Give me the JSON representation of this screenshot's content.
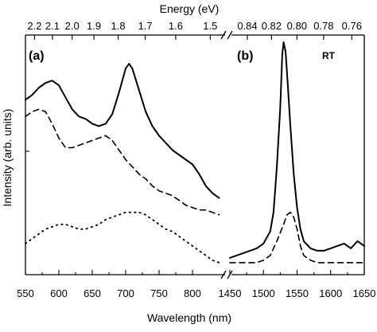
{
  "chart_data": {
    "type": "line",
    "xlabel": "Wavelength (nm)",
    "ylabel": "Intensity (arb. units)",
    "top_axis_label": "Energy (eV)",
    "panels": [
      {
        "label": "(a)",
        "xlim": [
          550,
          850
        ],
        "x_ticks": [
          "550",
          "600",
          "650",
          "700",
          "750",
          "800"
        ],
        "top_ticks": [
          {
            "label": "2.2",
            "wavelength": 563.6
          },
          {
            "label": "2.1",
            "wavelength": 590.4
          },
          {
            "label": "2.0",
            "wavelength": 619.9
          },
          {
            "label": "1.9",
            "wavelength": 652.5
          },
          {
            "label": "1.8",
            "wavelength": 688.8
          },
          {
            "label": "1.7",
            "wavelength": 729.3
          },
          {
            "label": "1.6",
            "wavelength": 774.9
          },
          {
            "label": "1.5",
            "wavelength": 826.6
          }
        ],
        "series": [
          {
            "style": "solid",
            "x": [
              550,
              560,
              570,
              580,
              590,
              600,
              610,
              620,
              630,
              640,
              650,
              660,
              670,
              680,
              690,
              700,
              705,
              710,
              720,
              730,
              740,
              750,
              760,
              770,
              780,
              790,
              800,
              810,
              820,
              830,
              840
            ],
            "y": [
              0.73,
              0.75,
              0.78,
              0.8,
              0.81,
              0.79,
              0.74,
              0.69,
              0.66,
              0.65,
              0.63,
              0.62,
              0.63,
              0.67,
              0.76,
              0.86,
              0.88,
              0.86,
              0.77,
              0.68,
              0.62,
              0.58,
              0.55,
              0.52,
              0.5,
              0.48,
              0.46,
              0.42,
              0.37,
              0.34,
              0.32
            ]
          },
          {
            "style": "dashed",
            "x": [
              550,
              560,
              570,
              580,
              590,
              600,
              610,
              620,
              630,
              640,
              650,
              660,
              670,
              680,
              690,
              700,
              710,
              720,
              730,
              740,
              750,
              760,
              770,
              780,
              790,
              800,
              810,
              820,
              830,
              840
            ],
            "y": [
              0.66,
              0.68,
              0.69,
              0.68,
              0.63,
              0.57,
              0.53,
              0.53,
              0.54,
              0.55,
              0.56,
              0.57,
              0.58,
              0.56,
              0.52,
              0.48,
              0.45,
              0.42,
              0.4,
              0.37,
              0.35,
              0.34,
              0.33,
              0.31,
              0.29,
              0.28,
              0.27,
              0.27,
              0.26,
              0.25
            ]
          },
          {
            "style": "dotted",
            "x": [
              550,
              560,
              570,
              580,
              590,
              600,
              610,
              620,
              630,
              640,
              650,
              660,
              670,
              680,
              690,
              700,
              710,
              720,
              730,
              740,
              750,
              760,
              770,
              780,
              790,
              800,
              810,
              820,
              830,
              840
            ],
            "y": [
              0.13,
              0.15,
              0.17,
              0.19,
              0.2,
              0.21,
              0.21,
              0.2,
              0.19,
              0.19,
              0.2,
              0.21,
              0.23,
              0.24,
              0.25,
              0.26,
              0.26,
              0.26,
              0.25,
              0.23,
              0.21,
              0.19,
              0.18,
              0.16,
              0.14,
              0.12,
              0.1,
              0.08,
              0.06,
              0.05
            ]
          }
        ]
      },
      {
        "label": "(b)",
        "annotation": "RT",
        "xlim": [
          1450,
          1650
        ],
        "x_ticks": [
          "1450",
          "1500",
          "1550",
          "1600",
          "1650"
        ],
        "top_ticks": [
          {
            "label": "0.84",
            "wavelength": 1476.0
          },
          {
            "label": "0.82",
            "wavelength": 1512.0
          },
          {
            "label": "0.80",
            "wavelength": 1549.8
          },
          {
            "label": "0.78",
            "wavelength": 1589.5
          },
          {
            "label": "0.76",
            "wavelength": 1631.4
          }
        ],
        "series": [
          {
            "style": "solid",
            "x": [
              1450,
              1460,
              1470,
              1480,
              1490,
              1500,
              1510,
              1515,
              1520,
              1525,
              1528,
              1530,
              1533,
              1536,
              1540,
              1545,
              1550,
              1555,
              1560,
              1570,
              1580,
              1590,
              1600,
              1610,
              1620,
              1630,
              1640,
              1650
            ],
            "y": [
              0.07,
              0.08,
              0.09,
              0.1,
              0.11,
              0.13,
              0.18,
              0.26,
              0.45,
              0.7,
              0.92,
              0.97,
              0.93,
              0.8,
              0.62,
              0.42,
              0.28,
              0.19,
              0.14,
              0.11,
              0.1,
              0.1,
              0.11,
              0.12,
              0.13,
              0.11,
              0.14,
              0.12
            ]
          },
          {
            "style": "dashed",
            "x": [
              1450,
              1460,
              1470,
              1480,
              1490,
              1500,
              1510,
              1520,
              1530,
              1535,
              1540,
              1545,
              1550,
              1555,
              1560,
              1570,
              1580,
              1590,
              1600,
              1610,
              1620,
              1630,
              1640,
              1650
            ],
            "y": [
              0.05,
              0.05,
              0.05,
              0.05,
              0.05,
              0.06,
              0.08,
              0.14,
              0.21,
              0.25,
              0.26,
              0.24,
              0.19,
              0.12,
              0.08,
              0.06,
              0.05,
              0.05,
              0.05,
              0.05,
              0.05,
              0.05,
              0.05,
              0.05
            ]
          }
        ]
      }
    ],
    "ylim": [
      0,
      1
    ]
  }
}
